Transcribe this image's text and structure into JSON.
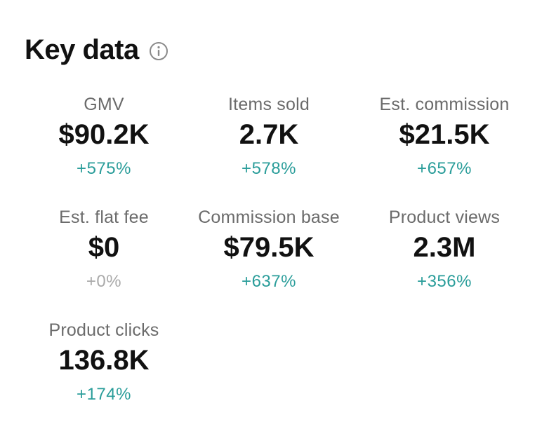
{
  "header": {
    "title": "Key data",
    "info_icon": "info-icon"
  },
  "colors": {
    "positive_change": "#2a9d9a",
    "neutral_change": "#aaaaaa",
    "label": "#6b6b6b",
    "value": "#111111"
  },
  "metrics": [
    {
      "label": "GMV",
      "value": "$90.2K",
      "change": "+575%",
      "trend": "up"
    },
    {
      "label": "Items sold",
      "value": "2.7K",
      "change": "+578%",
      "trend": "up"
    },
    {
      "label": "Est. commission",
      "value": "$21.5K",
      "change": "+657%",
      "trend": "up"
    },
    {
      "label": "Est. flat fee",
      "value": "$0",
      "change": "+0%",
      "trend": "flat"
    },
    {
      "label": "Commission base",
      "value": "$79.5K",
      "change": "+637%",
      "trend": "up"
    },
    {
      "label": "Product views",
      "value": "2.3M",
      "change": "+356%",
      "trend": "up"
    },
    {
      "label": "Product clicks",
      "value": "136.8K",
      "change": "+174%",
      "trend": "up"
    }
  ]
}
